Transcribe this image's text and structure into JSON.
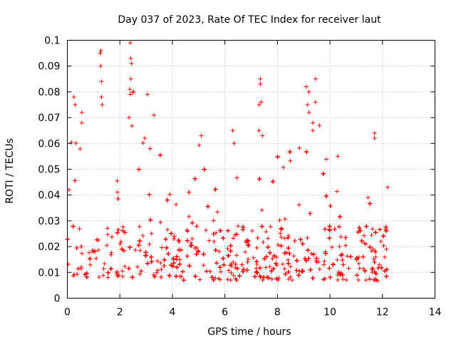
{
  "chart_data": {
    "type": "scatter",
    "title": "Day 037 of 2023, Rate Of TEC Index for receiver laut",
    "xlabel": "GPS time / hours",
    "ylabel": "ROTI / TECUs",
    "xlim": [
      0,
      14
    ],
    "ylim": [
      0,
      0.1
    ],
    "xticks": [
      0,
      2,
      4,
      6,
      8,
      10,
      12,
      14
    ],
    "yticks": [
      0,
      0.01,
      0.02,
      0.03,
      0.04,
      0.05,
      0.06,
      0.07,
      0.08,
      0.09,
      0.1
    ],
    "xtick_labels": [
      "0",
      "2",
      "4",
      "6",
      "8",
      "10",
      "12",
      "14"
    ],
    "ytick_labels": [
      "0",
      "0.01",
      "0.02",
      "0.03",
      "0.04",
      "0.05",
      "0.06",
      "0.07",
      "0.08",
      "0.09",
      "0.1"
    ],
    "grid": true,
    "marker": "+",
    "color": "#ff0000",
    "series_envelope": {
      "x": [
        0,
        0.25,
        0.5,
        0.75,
        1,
        1.25,
        1.5,
        1.75,
        2,
        2.25,
        2.5,
        2.75,
        3,
        3.25,
        3.5,
        3.75,
        4,
        4.25,
        4.5,
        4.75,
        5,
        5.25,
        5.5,
        5.75,
        6,
        6.25,
        6.5,
        6.75,
        7,
        7.25,
        7.5,
        7.75,
        8,
        8.25,
        8.5,
        8.75,
        9,
        9.25,
        9.5,
        9.75,
        10,
        10.25,
        10.5,
        10.75,
        11,
        11.25,
        11.5,
        11.75,
        12,
        12.2
      ],
      "y_low": [
        0.009,
        0.007,
        0.008,
        0.008,
        0.008,
        0.008,
        0.008,
        0.008,
        0.008,
        0.008,
        0.008,
        0.008,
        0.008,
        0.008,
        0.008,
        0.008,
        0.007,
        0.007,
        0.007,
        0.007,
        0.007,
        0.007,
        0.007,
        0.007,
        0.007,
        0.007,
        0.007,
        0.007,
        0.007,
        0.007,
        0.007,
        0.007,
        0.007,
        0.007,
        0.007,
        0.007,
        0.007,
        0.007,
        0.007,
        0.007,
        0.007,
        0.007,
        0.007,
        0.007,
        0.007,
        0.007,
        0.007,
        0.007,
        0.006,
        0.006
      ],
      "y_high": [
        0.045,
        0.078,
        0.072,
        0.06,
        0.05,
        0.096,
        0.06,
        0.053,
        0.045,
        0.099,
        0.085,
        0.062,
        0.079,
        0.068,
        0.062,
        0.05,
        0.046,
        0.05,
        0.048,
        0.046,
        0.063,
        0.06,
        0.058,
        0.058,
        0.06,
        0.065,
        0.06,
        0.045,
        0.045,
        0.085,
        0.06,
        0.055,
        0.06,
        0.058,
        0.058,
        0.06,
        0.082,
        0.085,
        0.068,
        0.058,
        0.053,
        0.055,
        0.042,
        0.05,
        0.042,
        0.04,
        0.042,
        0.064,
        0.043,
        0.04
      ]
    },
    "outliers": [
      {
        "x": 1.28,
        "y": 0.096
      },
      {
        "x": 1.25,
        "y": 0.095
      },
      {
        "x": 1.27,
        "y": 0.09
      },
      {
        "x": 1.3,
        "y": 0.084
      },
      {
        "x": 1.3,
        "y": 0.078
      },
      {
        "x": 1.33,
        "y": 0.075
      },
      {
        "x": 2.4,
        "y": 0.099
      },
      {
        "x": 2.42,
        "y": 0.093
      },
      {
        "x": 2.45,
        "y": 0.091
      },
      {
        "x": 2.42,
        "y": 0.085
      },
      {
        "x": 2.38,
        "y": 0.081
      },
      {
        "x": 2.4,
        "y": 0.079
      },
      {
        "x": 2.35,
        "y": 0.07
      },
      {
        "x": 3.05,
        "y": 0.079
      },
      {
        "x": 0.25,
        "y": 0.078
      },
      {
        "x": 0.3,
        "y": 0.075
      },
      {
        "x": 0.55,
        "y": 0.072
      },
      {
        "x": 0.55,
        "y": 0.068
      },
      {
        "x": 3.3,
        "y": 0.071
      },
      {
        "x": 7.35,
        "y": 0.085
      },
      {
        "x": 7.35,
        "y": 0.083
      },
      {
        "x": 7.3,
        "y": 0.075
      },
      {
        "x": 7.38,
        "y": 0.076
      },
      {
        "x": 7.3,
        "y": 0.065
      },
      {
        "x": 9.1,
        "y": 0.082
      },
      {
        "x": 9.2,
        "y": 0.08
      },
      {
        "x": 9.45,
        "y": 0.085
      },
      {
        "x": 9.45,
        "y": 0.076
      },
      {
        "x": 9.15,
        "y": 0.075
      },
      {
        "x": 9.2,
        "y": 0.072
      },
      {
        "x": 9.35,
        "y": 0.068
      },
      {
        "x": 9.35,
        "y": 0.065
      },
      {
        "x": 9.6,
        "y": 0.067
      },
      {
        "x": 11.7,
        "y": 0.064
      },
      {
        "x": 11.7,
        "y": 0.062
      },
      {
        "x": 6.3,
        "y": 0.065
      },
      {
        "x": 6.35,
        "y": 0.06
      },
      {
        "x": 5.1,
        "y": 0.063
      },
      {
        "x": 2.95,
        "y": 0.062
      },
      {
        "x": 3.15,
        "y": 0.058
      },
      {
        "x": 10.3,
        "y": 0.055
      },
      {
        "x": 12.2,
        "y": 0.043
      }
    ]
  }
}
